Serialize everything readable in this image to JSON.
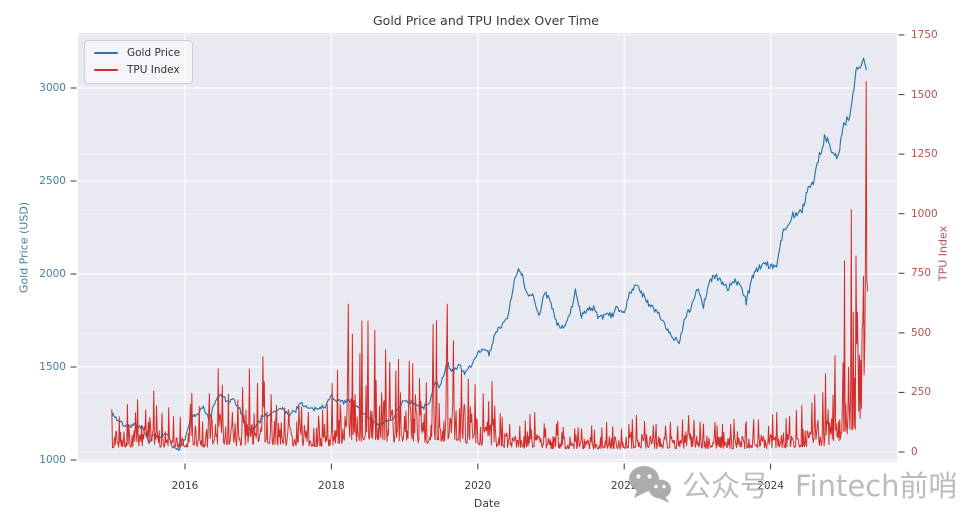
{
  "figure": {
    "background": "#ffffff",
    "plot_background": "#e9e9f1"
  },
  "colors": {
    "title": "#3a3a3a",
    "left_axis": "#47809b",
    "right_axis": "#b4544e",
    "x_axis": "#3d3d3d",
    "tick_mark": "#4a4a4a",
    "grid": "#ffffff",
    "gold_line": "#2b76a8",
    "tpu_line": "#d42d28",
    "watermark": "#b9b9b9",
    "wechat_icon": "#a8a8a8"
  },
  "chart_data": {
    "type": "line",
    "title": "Gold Price and TPU Index Over Time",
    "xlabel": "Date",
    "ylabel_left": "Gold Price (USD)",
    "ylabel_right": "TPU Index",
    "grid": "on",
    "x_ticks": [
      2016,
      2018,
      2020,
      2022,
      2024
    ],
    "y_ticks_left": [
      1000,
      1500,
      2000,
      2500,
      3000
    ],
    "y_ticks_right": [
      0,
      250,
      500,
      750,
      1000,
      1250,
      1500,
      1750
    ],
    "x_range": [
      2015.0,
      2025.33
    ],
    "y_range_left": [
      989,
      3296
    ],
    "y_range_right": [
      0,
      1763
    ],
    "legend": {
      "position": "upper-left",
      "entries": [
        {
          "label": "Gold Price",
          "color": "#2b76a8"
        },
        {
          "label": "TPU Index",
          "color": "#d42d28"
        }
      ]
    },
    "series": [
      {
        "name": "Gold Price",
        "axis": "left",
        "color": "#2b76a8",
        "unit": "USD",
        "sampling": "monthly",
        "start": "2015-01",
        "values": [
          1255,
          1213,
          1187,
          1184,
          1191,
          1172,
          1096,
          1135,
          1114,
          1142,
          1065,
          1061,
          1111,
          1234,
          1237,
          1285,
          1215,
          1322,
          1351,
          1309,
          1322,
          1272,
          1178,
          1152,
          1210,
          1248,
          1244,
          1266,
          1275,
          1242,
          1267,
          1311,
          1280,
          1271,
          1280,
          1291,
          1345,
          1318,
          1322,
          1315,
          1298,
          1253,
          1224,
          1201,
          1187,
          1215,
          1220,
          1281,
          1321,
          1313,
          1292,
          1283,
          1305,
          1409,
          1414,
          1520,
          1472,
          1511,
          1464,
          1517,
          1584,
          1586,
          1577,
          1694,
          1730,
          1781,
          1976,
          2035,
          1886,
          1879,
          1777,
          1898,
          1848,
          1734,
          1708,
          1768,
          1907,
          1770,
          1814,
          1815,
          1757,
          1783,
          1775,
          1829,
          1797,
          1909,
          1937,
          1897,
          1837,
          1807,
          1766,
          1711,
          1661,
          1634,
          1769,
          1824,
          1928,
          1827,
          1969,
          1990,
          1962,
          1919,
          1965,
          1940,
          1849,
          1984,
          2036,
          2063,
          2040,
          2044,
          2230,
          2286,
          2327,
          2327,
          2448,
          2503,
          2635,
          2744,
          2657,
          2625,
          2798,
          2858,
          3085,
          3150
        ]
      },
      {
        "name": "TPU Index",
        "axis": "right",
        "color": "#d42d28",
        "sampling": "monthly",
        "start": "2015-01",
        "typical_values": [
          60,
          65,
          60,
          70,
          80,
          75,
          90,
          70,
          65,
          80,
          60,
          70,
          70,
          80,
          75,
          70,
          90,
          110,
          100,
          90,
          85,
          95,
          130,
          110,
          140,
          110,
          100,
          90,
          85,
          80,
          90,
          85,
          80,
          75,
          80,
          85,
          100,
          120,
          140,
          160,
          150,
          170,
          180,
          170,
          160,
          150,
          140,
          150,
          150,
          140,
          130,
          120,
          160,
          170,
          150,
          180,
          160,
          140,
          120,
          130,
          90,
          80,
          100,
          70,
          60,
          55,
          50,
          55,
          60,
          65,
          50,
          45,
          45,
          50,
          45,
          40,
          45,
          40,
          45,
          40,
          45,
          50,
          45,
          40,
          45,
          50,
          55,
          50,
          45,
          50,
          45,
          50,
          45,
          50,
          55,
          50,
          50,
          45,
          50,
          45,
          50,
          45,
          50,
          45,
          50,
          55,
          50,
          45,
          55,
          60,
          55,
          60,
          65,
          70,
          75,
          80,
          85,
          100,
          150,
          160,
          250,
          300,
          420,
          600
        ],
        "spike_values": [
          180,
          150,
          200,
          170,
          240,
          200,
          260,
          220,
          180,
          200,
          150,
          160,
          220,
          260,
          200,
          180,
          250,
          380,
          300,
          260,
          240,
          280,
          390,
          300,
          430,
          300,
          260,
          220,
          200,
          180,
          220,
          200,
          180,
          170,
          190,
          200,
          300,
          350,
          650,
          500,
          420,
          600,
          560,
          520,
          480,
          400,
          380,
          420,
          420,
          380,
          350,
          320,
          560,
          600,
          480,
          650,
          500,
          380,
          320,
          300,
          260,
          220,
          300,
          180,
          150,
          130,
          120,
          140,
          160,
          180,
          120,
          110,
          120,
          130,
          110,
          100,
          110,
          100,
          120,
          100,
          110,
          130,
          120,
          100,
          130,
          140,
          160,
          140,
          120,
          130,
          120,
          130,
          120,
          140,
          160,
          140,
          140,
          120,
          130,
          120,
          130,
          120,
          140,
          120,
          130,
          150,
          140,
          120,
          160,
          170,
          150,
          160,
          180,
          200,
          220,
          240,
          260,
          330,
          420,
          380,
          880,
          1060,
          900,
          1664
        ]
      }
    ]
  },
  "watermark": {
    "icon": "wechat-icon",
    "text_cn": "公众号",
    "text_en": "Fintech前哨",
    "color": "#b9b9b9"
  }
}
